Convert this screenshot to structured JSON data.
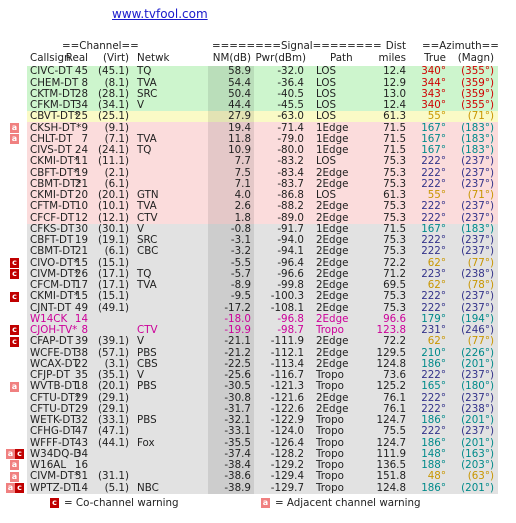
{
  "link": "www.tvfool.com",
  "header": {
    "groups": [
      "==Channel==",
      "========Signal========",
      "Dist",
      "==Azimuth=="
    ],
    "columns": [
      "Callsign",
      "Real",
      "(Virt)",
      "Netwk",
      "NM(dB)",
      "Pwr(dBm)",
      "Path",
      "miles",
      "True",
      "(Magn)"
    ]
  },
  "legend": {
    "co_icon": "c",
    "co_text": "= Co-channel warning",
    "adj_icon": "a",
    "adj_text": "= Adjacent channel warning"
  },
  "rows": [
    {
      "cells": [
        "CIVC-DT",
        "45",
        "(45.1)",
        "TQ",
        "58.9",
        "-32.0",
        "LOS",
        "12.4",
        "340°",
        "(355°)"
      ],
      "bg": "#cdf5cd",
      "az": "#d00000",
      "warnings": []
    },
    {
      "cells": [
        "CHEM-DT",
        "8",
        "(8.1)",
        "TVA",
        "54.4",
        "-36.4",
        "LOS",
        "12.9",
        "344°",
        "(359°)"
      ],
      "bg": "#cdf5cd",
      "az": "#d00000",
      "warnings": []
    },
    {
      "cells": [
        "CKTM-DT",
        "28",
        "(28.1)",
        "SRC",
        "50.4",
        "-40.5",
        "LOS",
        "13.0",
        "343°",
        "(359°)"
      ],
      "bg": "#cdf5cd",
      "az": "#d00000",
      "warnings": []
    },
    {
      "cells": [
        "CFKM-DT",
        "34",
        "(34.1)",
        "V",
        "44.4",
        "-45.5",
        "LOS",
        "12.4",
        "340°",
        "(355°)"
      ],
      "bg": "#cdf5cd",
      "az": "#d00000",
      "warnings": []
    },
    {
      "cells": [
        "CBVT-DT*",
        "25",
        "(25.1)",
        "",
        "27.9",
        "-63.0",
        "LOS",
        "61.3",
        "55°",
        "(71°)"
      ],
      "bg": "#fafac6",
      "az": "#c89600",
      "warnings": []
    },
    {
      "cells": [
        "CKSH-DT*",
        "9",
        "(9.1)",
        "",
        "19.4",
        "-71.4",
        "1Edge",
        "71.5",
        "167°",
        "(183°)"
      ],
      "bg": "#fbdcdc",
      "az": "#008a8a",
      "warnings": [
        "a"
      ]
    },
    {
      "cells": [
        "CHLT-DT",
        "7",
        "(7.1)",
        "TVA",
        "11.8",
        "-79.0",
        "1Edge",
        "71.5",
        "167°",
        "(183°)"
      ],
      "bg": "#fbdcdc",
      "az": "#008a8a",
      "warnings": [
        "a"
      ]
    },
    {
      "cells": [
        "CIVS-DT",
        "24",
        "(24.1)",
        "TQ",
        "10.9",
        "-80.0",
        "1Edge",
        "71.5",
        "167°",
        "(183°)"
      ],
      "bg": "#fbdcdc",
      "az": "#008a8a",
      "warnings": []
    },
    {
      "cells": [
        "CKMI-DT*",
        "11",
        "(11.1)",
        "",
        "7.7",
        "-83.2",
        "LOS",
        "75.3",
        "222°",
        "(237°)"
      ],
      "bg": "#fbdcdc",
      "az": "#33338a",
      "warnings": []
    },
    {
      "cells": [
        "CBFT-DT*",
        "19",
        "(2.1)",
        "",
        "7.5",
        "-83.4",
        "2Edge",
        "75.3",
        "222°",
        "(237°)"
      ],
      "bg": "#fbdcdc",
      "az": "#33338a",
      "warnings": []
    },
    {
      "cells": [
        "CBMT-DT*",
        "21",
        "(6.1)",
        "",
        "7.1",
        "-83.7",
        "2Edge",
        "75.3",
        "222°",
        "(237°)"
      ],
      "bg": "#fbdcdc",
      "az": "#33338a",
      "warnings": []
    },
    {
      "cells": [
        "CKMI-DT",
        "20",
        "(20.1)",
        "GTN",
        "4.0",
        "-86.8",
        "LOS",
        "61.3",
        "55°",
        "(71°)"
      ],
      "bg": "#fbdcdc",
      "az": "#c89600",
      "warnings": []
    },
    {
      "cells": [
        "CFTM-DT",
        "10",
        "(10.1)",
        "TVA",
        "2.6",
        "-88.2",
        "2Edge",
        "75.3",
        "222°",
        "(237°)"
      ],
      "bg": "#fbdcdc",
      "az": "#33338a",
      "warnings": []
    },
    {
      "cells": [
        "CFCF-DT",
        "12",
        "(12.1)",
        "CTV",
        "1.8",
        "-89.0",
        "2Edge",
        "75.3",
        "222°",
        "(237°)"
      ],
      "bg": "#fbdcdc",
      "az": "#33338a",
      "warnings": []
    },
    {
      "cells": [
        "CFKS-DT",
        "30",
        "(30.1)",
        "V",
        "-0.8",
        "-91.7",
        "1Edge",
        "71.5",
        "167°",
        "(183°)"
      ],
      "bg": "#e2e2e2",
      "az": "#008a8a",
      "warnings": []
    },
    {
      "cells": [
        "CBFT-DT",
        "19",
        "(19.1)",
        "SRC",
        "-3.1",
        "-94.0",
        "2Edge",
        "75.3",
        "222°",
        "(237°)"
      ],
      "bg": "#e2e2e2",
      "az": "#33338a",
      "warnings": []
    },
    {
      "cells": [
        "CBMT-DT",
        "21",
        "(6.1)",
        "CBC",
        "-3.2",
        "-94.1",
        "2Edge",
        "75.3",
        "222°",
        "(237°)"
      ],
      "bg": "#e2e2e2",
      "az": "#33338a",
      "warnings": []
    },
    {
      "cells": [
        "CIVO-DT*",
        "15",
        "(15.1)",
        "",
        "-5.5",
        "-96.4",
        "2Edge",
        "72.2",
        "62°",
        "(77°)"
      ],
      "bg": "#e2e2e2",
      "az": "#c89600",
      "warnings": [
        "c"
      ]
    },
    {
      "cells": [
        "CIVM-DT*",
        "26",
        "(17.1)",
        "TQ",
        "-5.7",
        "-96.6",
        "2Edge",
        "71.2",
        "223°",
        "(238°)"
      ],
      "bg": "#e2e2e2",
      "az": "#33338a",
      "warnings": [
        "c"
      ]
    },
    {
      "cells": [
        "CFCM-DT",
        "17",
        "(17.1)",
        "TVA",
        "-8.9",
        "-99.8",
        "2Edge",
        "69.5",
        "62°",
        "(78°)"
      ],
      "bg": "#e2e2e2",
      "az": "#c89600",
      "warnings": []
    },
    {
      "cells": [
        "CKMI-DT*",
        "15",
        "(15.1)",
        "",
        "-9.5",
        "-100.3",
        "2Edge",
        "75.3",
        "222°",
        "(237°)"
      ],
      "bg": "#e2e2e2",
      "az": "#33338a",
      "warnings": [
        "c"
      ]
    },
    {
      "cells": [
        "CJNT-DT",
        "49",
        "(49.1)",
        "",
        "-17.2",
        "-108.1",
        "2Edge",
        "75.3",
        "222°",
        "(237°)"
      ],
      "bg": "#e2e2e2",
      "az": "#33338a",
      "warnings": []
    },
    {
      "cells": [
        "W14CK",
        "14",
        "",
        "",
        "-18.0",
        "-96.8",
        "2Edge",
        "96.6",
        "179°",
        "(194°)"
      ],
      "bg": "#e2e2e2",
      "az": "#008a8a",
      "text": "#cc0099",
      "warnings": []
    },
    {
      "cells": [
        "CJOH-TV*",
        "8",
        "",
        "CTV",
        "-19.9",
        "-98.7",
        "Tropo",
        "123.8",
        "231°",
        "(246°)"
      ],
      "bg": "#e2e2e2",
      "az": "#33338a",
      "text": "#cc0099",
      "warnings": [
        "c"
      ]
    },
    {
      "cells": [
        "CFAP-DT",
        "39",
        "(39.1)",
        "V",
        "-21.1",
        "-111.9",
        "2Edge",
        "72.2",
        "62°",
        "(77°)"
      ],
      "bg": "#e2e2e2",
      "az": "#c89600",
      "warnings": [
        "c"
      ]
    },
    {
      "cells": [
        "WCFE-DT",
        "38",
        "(57.1)",
        "PBS",
        "-21.2",
        "-112.1",
        "2Edge",
        "129.5",
        "210°",
        "(226°)"
      ],
      "bg": "#e2e2e2",
      "az": "#008a8a",
      "warnings": []
    },
    {
      "cells": [
        "WCAX-DT",
        "22",
        "(3.1)",
        "CBS",
        "-22.5",
        "-113.4",
        "2Edge",
        "124.8",
        "186°",
        "(201°)"
      ],
      "bg": "#e2e2e2",
      "az": "#008a8a",
      "warnings": []
    },
    {
      "cells": [
        "CFJP-DT",
        "35",
        "(35.1)",
        "V",
        "-25.6",
        "-116.7",
        "Tropo",
        "73.6",
        "222°",
        "(237°)"
      ],
      "bg": "#e2e2e2",
      "az": "#33338a",
      "warnings": []
    },
    {
      "cells": [
        "WVTB-DT",
        "18",
        "(20.1)",
        "PBS",
        "-30.5",
        "-121.3",
        "Tropo",
        "125.2",
        "165°",
        "(180°)"
      ],
      "bg": "#e2e2e2",
      "az": "#008a8a",
      "warnings": [
        "a"
      ]
    },
    {
      "cells": [
        "CFTU-DT*",
        "29",
        "(29.1)",
        "",
        "-30.8",
        "-121.6",
        "2Edge",
        "76.1",
        "222°",
        "(237°)"
      ],
      "bg": "#e2e2e2",
      "az": "#33338a",
      "warnings": []
    },
    {
      "cells": [
        "CFTU-DT",
        "29",
        "(29.1)",
        "",
        "-31.7",
        "-122.6",
        "2Edge",
        "76.1",
        "222°",
        "(238°)"
      ],
      "bg": "#e2e2e2",
      "az": "#33338a",
      "warnings": []
    },
    {
      "cells": [
        "WETK-DT",
        "32",
        "(33.1)",
        "PBS",
        "-32.1",
        "-122.9",
        "Tropo",
        "124.7",
        "186°",
        "(201°)"
      ],
      "bg": "#e2e2e2",
      "az": "#008a8a",
      "warnings": []
    },
    {
      "cells": [
        "CFHG-DT",
        "47",
        "(47.1)",
        "",
        "-33.1",
        "-124.0",
        "Tropo",
        "75.5",
        "222°",
        "(237°)"
      ],
      "bg": "#e2e2e2",
      "az": "#33338a",
      "warnings": []
    },
    {
      "cells": [
        "WFFF-DT",
        "43",
        "(44.1)",
        "Fox",
        "-35.5",
        "-126.4",
        "Tropo",
        "124.7",
        "186°",
        "(201°)"
      ],
      "bg": "#e2e2e2",
      "az": "#008a8a",
      "warnings": []
    },
    {
      "cells": [
        "W34DQ-D",
        "34",
        "",
        "",
        "-37.4",
        "-128.2",
        "Tropo",
        "111.9",
        "148°",
        "(163°)"
      ],
      "bg": "#e2e2e2",
      "az": "#008a8a",
      "warnings": [
        "a",
        "c"
      ]
    },
    {
      "cells": [
        "W16AL",
        "16",
        "",
        "",
        "-38.4",
        "-129.2",
        "Tropo",
        "136.5",
        "188°",
        "(203°)"
      ],
      "bg": "#e2e2e2",
      "az": "#008a8a",
      "warnings": [
        "a"
      ]
    },
    {
      "cells": [
        "CIVM-DT*",
        "31",
        "(31.1)",
        "",
        "-38.6",
        "-129.4",
        "Tropo",
        "151.8",
        "48°",
        "(63°)"
      ],
      "bg": "#e2e2e2",
      "az": "#c89600",
      "warnings": [
        "a"
      ]
    },
    {
      "cells": [
        "WPTZ-DT",
        "14",
        "(5.1)",
        "NBC",
        "-38.9",
        "-129.7",
        "Tropo",
        "124.8",
        "186°",
        "(201°)"
      ],
      "bg": "#e2e2e2",
      "az": "#008a8a",
      "warnings": [
        "a",
        "c"
      ]
    }
  ]
}
